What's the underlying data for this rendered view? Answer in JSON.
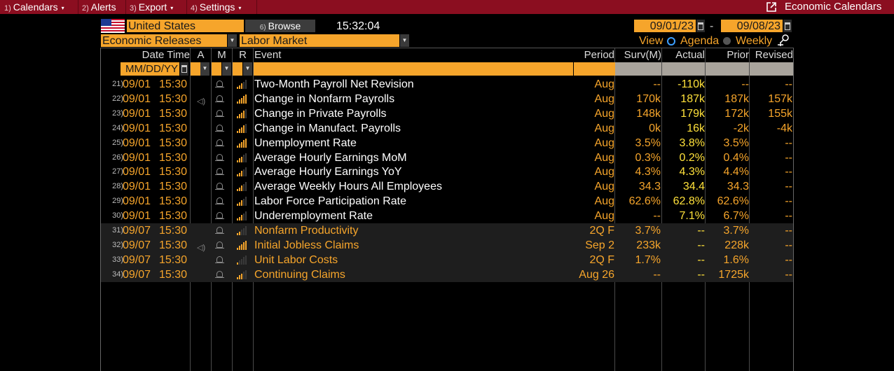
{
  "menu": {
    "items": [
      {
        "num": "1)",
        "label": "Calendars",
        "caret": "▾"
      },
      {
        "num": "2)",
        "label": "Alerts",
        "caret": ""
      },
      {
        "num": "3)",
        "label": "Export",
        "caret": "▾"
      },
      {
        "num": "4)",
        "label": "Settings",
        "caret": "▾"
      }
    ],
    "right_label": "Economic Calendars",
    "right_icon": "external-link-icon"
  },
  "toolbar": {
    "country": "United States",
    "browse_num": "6)",
    "browse_label": "Browse",
    "time": "15:32:04",
    "date_from": "09/01/23",
    "date_sep": "-",
    "date_to": "09/08/23",
    "release_type": "Economic Releases",
    "category": "Labor Market",
    "view_label": "View",
    "agenda_label": "Agenda",
    "weekly_label": "Weekly"
  },
  "columns": {
    "datetime": "Date Time",
    "a": "A",
    "m": "M",
    "r": "R",
    "event": "Event",
    "period": "Period",
    "survey": "Surv(M)",
    "actual": "Actual",
    "prior": "Prior",
    "revised": "Revised"
  },
  "filter": {
    "date_placeholder": "MM/DD/YY"
  },
  "colors": {
    "accent": "#f6a52b",
    "actual": "#ffe13b",
    "menubar": "#8b0e20"
  },
  "rows": [
    {
      "n": "21)",
      "date": "09/01",
      "time": "15:30",
      "speaker": false,
      "rel": 3,
      "event": "Two-Month Payroll Net Revision",
      "period": "Aug",
      "surv": "--",
      "actual": "-110k",
      "prior": "--",
      "revised": "--",
      "shade": false
    },
    {
      "n": "22)",
      "date": "09/01",
      "time": "15:30",
      "speaker": true,
      "rel": 5,
      "event": "Change in Nonfarm Payrolls",
      "period": "Aug",
      "surv": "170k",
      "actual": "187k",
      "prior": "187k",
      "revised": "157k",
      "shade": false
    },
    {
      "n": "23)",
      "date": "09/01",
      "time": "15:30",
      "speaker": false,
      "rel": 4,
      "event": "Change in Private Payrolls",
      "period": "Aug",
      "surv": "148k",
      "actual": "179k",
      "prior": "172k",
      "revised": "155k",
      "shade": false
    },
    {
      "n": "24)",
      "date": "09/01",
      "time": "15:30",
      "speaker": false,
      "rel": 4,
      "event": "Change in Manufact. Payrolls",
      "period": "Aug",
      "surv": "0k",
      "actual": "16k",
      "prior": "-2k",
      "revised": "-4k",
      "shade": false
    },
    {
      "n": "25)",
      "date": "09/01",
      "time": "15:30",
      "speaker": false,
      "rel": 5,
      "event": "Unemployment Rate",
      "period": "Aug",
      "surv": "3.5%",
      "actual": "3.8%",
      "prior": "3.5%",
      "revised": "--",
      "shade": false
    },
    {
      "n": "26)",
      "date": "09/01",
      "time": "15:30",
      "speaker": false,
      "rel": 3,
      "event": "Average Hourly Earnings MoM",
      "period": "Aug",
      "surv": "0.3%",
      "actual": "0.2%",
      "prior": "0.4%",
      "revised": "--",
      "shade": false
    },
    {
      "n": "27)",
      "date": "09/01",
      "time": "15:30",
      "speaker": false,
      "rel": 3,
      "event": "Average Hourly Earnings YoY",
      "period": "Aug",
      "surv": "4.3%",
      "actual": "4.3%",
      "prior": "4.4%",
      "revised": "--",
      "shade": false
    },
    {
      "n": "28)",
      "date": "09/01",
      "time": "15:30",
      "speaker": false,
      "rel": 3,
      "event": "Average Weekly Hours All Employees",
      "period": "Aug",
      "surv": "34.3",
      "actual": "34.4",
      "prior": "34.3",
      "revised": "--",
      "shade": false
    },
    {
      "n": "29)",
      "date": "09/01",
      "time": "15:30",
      "speaker": false,
      "rel": 3,
      "event": "Labor Force Participation Rate",
      "period": "Aug",
      "surv": "62.6%",
      "actual": "62.8%",
      "prior": "62.6%",
      "revised": "--",
      "shade": false
    },
    {
      "n": "30)",
      "date": "09/01",
      "time": "15:30",
      "speaker": false,
      "rel": 3,
      "event": "Underemployment Rate",
      "period": "Aug",
      "surv": "--",
      "actual": "7.1%",
      "prior": "6.7%",
      "revised": "--",
      "shade": false
    },
    {
      "n": "31)",
      "date": "09/07",
      "time": "15:30",
      "speaker": false,
      "rel": 2,
      "event": "Nonfarm Productivity",
      "period": "2Q F",
      "surv": "3.7%",
      "actual": "--",
      "prior": "3.7%",
      "revised": "--",
      "shade": true
    },
    {
      "n": "32)",
      "date": "09/07",
      "time": "15:30",
      "speaker": true,
      "rel": 5,
      "event": "Initial Jobless Claims",
      "period": "Sep 2",
      "surv": "233k",
      "actual": "--",
      "prior": "228k",
      "revised": "--",
      "shade": true
    },
    {
      "n": "33)",
      "date": "09/07",
      "time": "15:30",
      "speaker": false,
      "rel": 1,
      "event": "Unit Labor Costs",
      "period": "2Q F",
      "surv": "1.7%",
      "actual": "--",
      "prior": "1.6%",
      "revised": "--",
      "shade": true
    },
    {
      "n": "34)",
      "date": "09/07",
      "time": "15:30",
      "speaker": false,
      "rel": 3,
      "event": "Continuing Claims",
      "period": "Aug 26",
      "surv": "--",
      "actual": "--",
      "prior": "1725k",
      "revised": "--",
      "shade": true
    }
  ]
}
